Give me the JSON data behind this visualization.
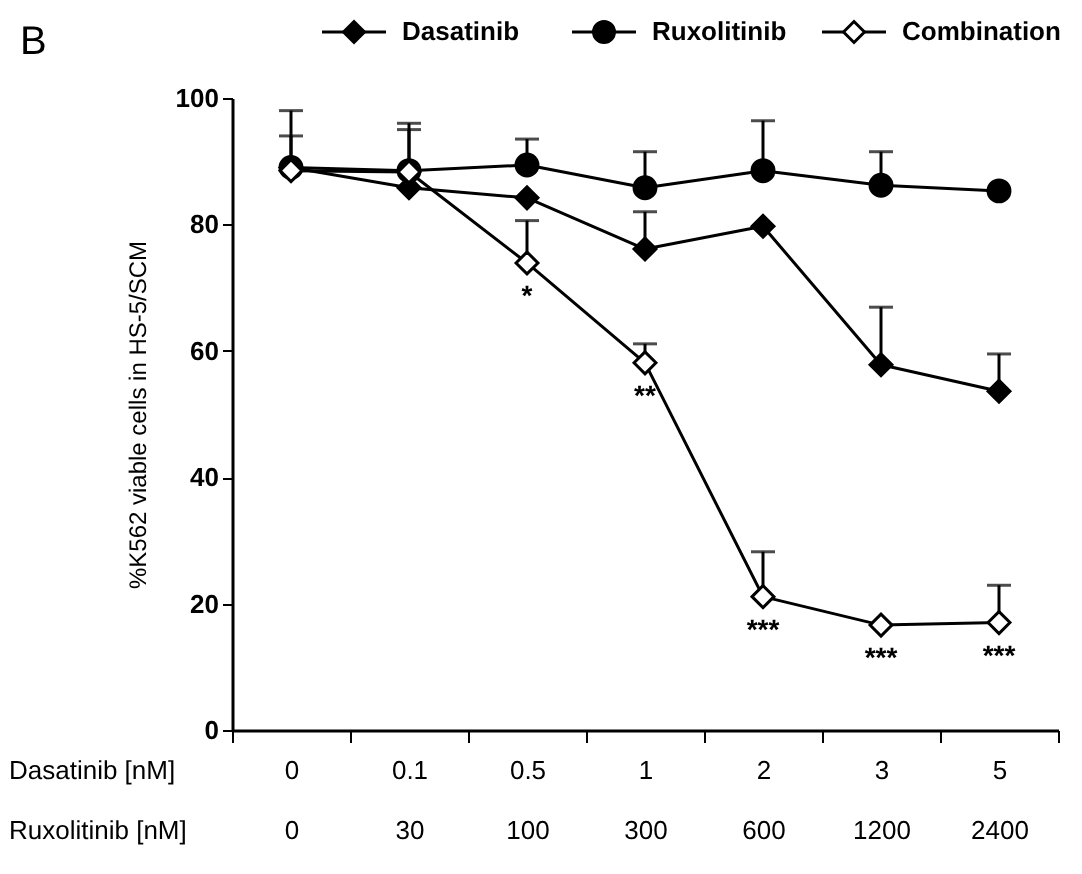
{
  "chart_data": {
    "type": "line",
    "title": "B",
    "ylabel": "%K562 viable cells in HS-5/SCM",
    "xlabel": "Dasatinib [nM]\nRuxolitinib [nM]",
    "categories": [
      "0\n0",
      "0.1\n30",
      "0.5\n100",
      "1\n300",
      "2\n600",
      "3\n1200",
      "5\n2400"
    ],
    "series": [
      {
        "name": "Dasatinib",
        "color": "#000000",
        "marker": "diamond",
        "values": [
          89,
          85.8,
          84.2,
          76.1,
          79.7,
          57.8,
          53.6
        ],
        "errors": [
          [
            89,
            94
          ],
          null,
          null,
          [
            76.1,
            82
          ],
          null,
          [
            57.8,
            66.9
          ],
          [
            53.6,
            59.5
          ]
        ]
      },
      {
        "name": "Ruxolitinib",
        "color": "#000000",
        "marker": "circle",
        "values": [
          89,
          88.5,
          89.4,
          85.8,
          88.5,
          86.2,
          85.3
        ],
        "errors": [
          null,
          [
            88.5,
            96
          ],
          [
            89.4,
            93.5
          ],
          [
            85.8,
            91.5
          ],
          [
            88.5,
            96.4
          ],
          [
            86.2,
            91.5
          ],
          null
        ]
      },
      {
        "name": "Combination",
        "color": "#000000",
        "marker": "diamond",
        "values": [
          88.5,
          88.3,
          73.9,
          58.1,
          21.1,
          16.6,
          17
        ],
        "errors": [
          [
            88.5,
            98
          ],
          [
            88.3,
            95
          ],
          [
            73.9,
            80.6
          ],
          [
            58.1,
            61.1
          ],
          [
            21.1,
            28.2
          ],
          null,
          [
            17,
            22.9
          ]
        ]
      }
    ],
    "ylim": [
      0,
      100
    ],
    "yticks": [
      0,
      20,
      40,
      60,
      80,
      100
    ],
    "grid": false,
    "legend": "top",
    "annotations": [
      {
        "text": "*",
        "x": "0.5\n100",
        "y": 73.9
      },
      {
        "text": "**",
        "x": "1\n300",
        "y": 58.1
      },
      {
        "text": "***",
        "x": "2\n600",
        "y": 21.1
      },
      {
        "text": "***",
        "x": "3\n1200",
        "y": 16.6
      },
      {
        "text": "***",
        "x": "5\n2400",
        "y": 17
      }
    ]
  }
}
